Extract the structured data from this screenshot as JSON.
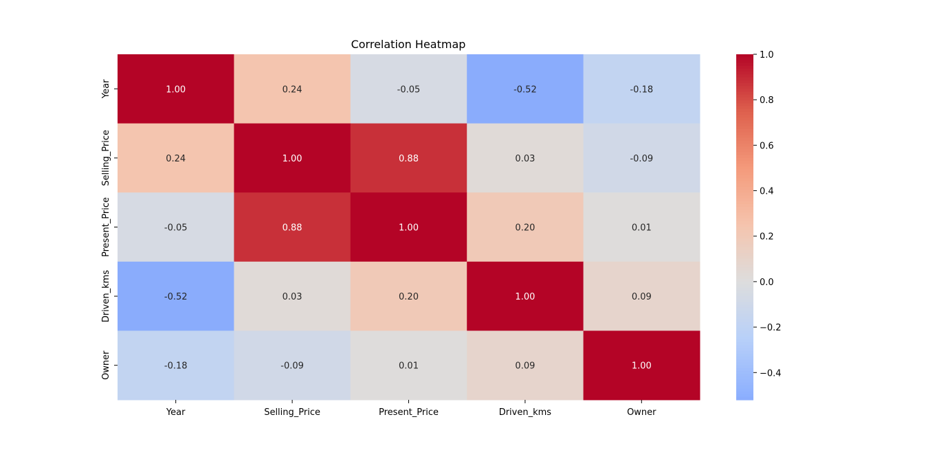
{
  "chart_data": {
    "type": "heatmap",
    "title": "Correlation Heatmap",
    "x_labels": [
      "Year",
      "Selling_Price",
      "Present_Price",
      "Driven_kms",
      "Owner"
    ],
    "y_labels": [
      "Year",
      "Selling_Price",
      "Present_Price",
      "Driven_kms",
      "Owner"
    ],
    "values": [
      [
        1.0,
        0.24,
        -0.05,
        -0.52,
        -0.18
      ],
      [
        0.24,
        1.0,
        0.88,
        0.03,
        -0.09
      ],
      [
        -0.05,
        0.88,
        1.0,
        0.2,
        0.01
      ],
      [
        -0.52,
        0.03,
        0.2,
        1.0,
        0.09
      ],
      [
        -0.18,
        -0.09,
        0.01,
        0.09,
        1.0
      ]
    ],
    "annotations": [
      [
        "1.00",
        "0.24",
        "-0.05",
        "-0.52",
        "-0.18"
      ],
      [
        "0.24",
        "1.00",
        "0.88",
        "0.03",
        "-0.09"
      ],
      [
        "-0.05",
        "0.88",
        "1.00",
        "0.20",
        "0.01"
      ],
      [
        "-0.52",
        "0.03",
        "0.20",
        "1.00",
        "0.09"
      ],
      [
        "-0.18",
        "-0.09",
        "0.01",
        "0.09",
        "1.00"
      ]
    ],
    "colormap": "coolwarm",
    "vmin": -0.52,
    "vmax": 1.0,
    "colorbar": {
      "ticks": [
        1.0,
        0.8,
        0.6,
        0.4,
        0.2,
        0.0,
        -0.2,
        -0.4
      ],
      "tick_labels": [
        "1.0",
        "0.8",
        "0.6",
        "0.4",
        "0.2",
        "0.0",
        "−0.2",
        "−0.4"
      ]
    }
  }
}
